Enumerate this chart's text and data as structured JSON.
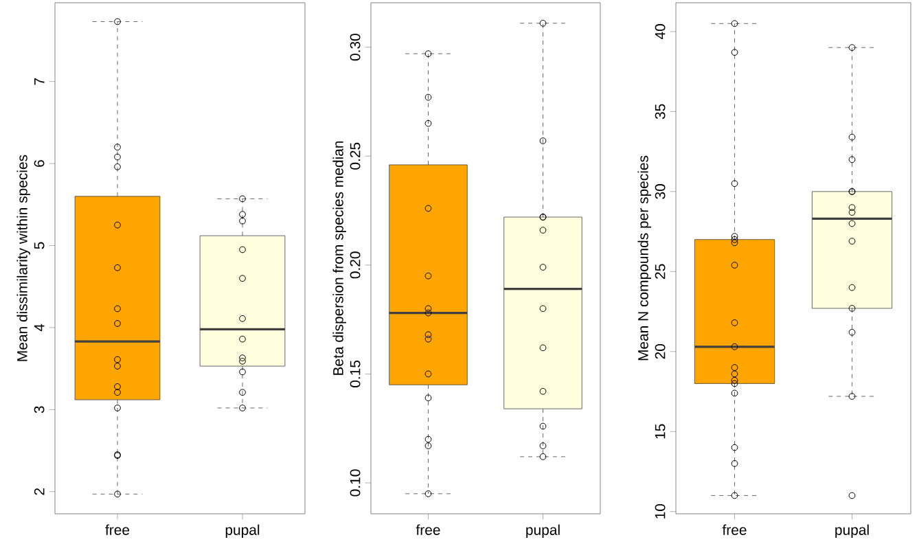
{
  "chart_data": [
    {
      "type": "box",
      "ylabel": "Mean dissimilarity within species",
      "categories": [
        "free",
        "pupal"
      ],
      "ylim": [
        1.73,
        7.96
      ],
      "yticks": [
        2,
        3,
        4,
        5,
        6,
        7
      ],
      "marker": "circle",
      "series": [
        {
          "type": "box",
          "colors": [
            "#ffa500",
            "#ffffe0"
          ],
          "boxes": [
            {
              "low": 1.97,
              "q1": 3.12,
              "median": 3.83,
              "q3": 5.6,
              "high": 7.73
            },
            {
              "low": 3.02,
              "q1": 3.53,
              "median": 3.98,
              "q3": 5.12,
              "high": 5.57
            }
          ]
        },
        {
          "type": "scatter",
          "color": "#000000",
          "x": [
            "free",
            "free",
            "free",
            "free",
            "free",
            "free",
            "free",
            "free",
            "free",
            "free",
            "free",
            "free",
            "free",
            "free",
            "free",
            "free",
            "pupal",
            "pupal",
            "pupal",
            "pupal",
            "pupal",
            "pupal",
            "pupal",
            "pupal",
            "pupal",
            "pupal",
            "pupal",
            "pupal"
          ],
          "values": [
            7.73,
            6.2,
            6.08,
            5.96,
            5.25,
            4.73,
            4.23,
            4.05,
            3.61,
            3.53,
            3.28,
            3.21,
            3.02,
            2.45,
            2.44,
            1.97,
            5.57,
            5.38,
            5.3,
            4.95,
            4.6,
            4.11,
            3.86,
            3.63,
            3.59,
            3.46,
            3.21,
            3.02
          ]
        }
      ]
    },
    {
      "type": "box",
      "ylabel": "Beta dispersion from species median",
      "categories": [
        "free",
        "pupal"
      ],
      "ylim": [
        0.0858,
        0.3204
      ],
      "yticks": [
        {
          "value": 0.1,
          "label": "0.10"
        },
        {
          "value": 0.15,
          "label": "0.15"
        },
        {
          "value": 0.2,
          "label": "0.20"
        },
        {
          "value": 0.25,
          "label": "0.25"
        },
        {
          "value": 0.3,
          "label": "0.30"
        }
      ],
      "marker": "circle",
      "series": [
        {
          "type": "box",
          "colors": [
            "#ffa500",
            "#ffffe0"
          ],
          "boxes": [
            {
              "low": 0.095,
              "q1": 0.145,
              "median": 0.178,
              "q3": 0.246,
              "high": 0.297
            },
            {
              "low": 0.112,
              "q1": 0.134,
              "median": 0.189,
              "q3": 0.222,
              "high": 0.311
            }
          ]
        },
        {
          "type": "scatter",
          "color": "#000000",
          "x": [
            "free",
            "free",
            "free",
            "free",
            "free",
            "free",
            "free",
            "free",
            "free",
            "free",
            "free",
            "free",
            "free",
            "free",
            "pupal",
            "pupal",
            "pupal",
            "pupal",
            "pupal",
            "pupal",
            "pupal",
            "pupal",
            "pupal",
            "pupal",
            "pupal",
            "pupal"
          ],
          "values": [
            0.297,
            0.277,
            0.265,
            0.226,
            0.195,
            0.18,
            0.178,
            0.168,
            0.166,
            0.15,
            0.139,
            0.12,
            0.117,
            0.095,
            0.311,
            0.257,
            0.222,
            0.222,
            0.216,
            0.199,
            0.18,
            0.162,
            0.142,
            0.126,
            0.117,
            0.112
          ]
        }
      ]
    },
    {
      "type": "box",
      "ylabel": "Mean N compounds per species",
      "categories": [
        "free",
        "pupal"
      ],
      "ylim": [
        9.86,
        41.8
      ],
      "yticks": [
        10,
        15,
        20,
        25,
        30,
        35,
        40
      ],
      "marker": "circle",
      "series": [
        {
          "type": "box",
          "colors": [
            "#ffa500",
            "#ffffe0"
          ],
          "boxes": [
            {
              "low": 11.0,
              "q1": 18.0,
              "median": 20.3,
              "q3": 27.0,
              "high": 40.5
            },
            {
              "low": 17.2,
              "q1": 22.7,
              "median": 28.3,
              "q3": 30.0,
              "high": 39.0
            }
          ]
        },
        {
          "type": "scatter",
          "color": "#000000",
          "x": [
            "free",
            "free",
            "free",
            "free",
            "free",
            "free",
            "free",
            "free",
            "free",
            "free",
            "free",
            "free",
            "free",
            "free",
            "free",
            "free",
            "free",
            "pupal",
            "pupal",
            "pupal",
            "pupal",
            "pupal",
            "pupal",
            "pupal",
            "pupal",
            "pupal",
            "pupal",
            "pupal",
            "pupal",
            "pupal",
            "pupal"
          ],
          "values": [
            40.5,
            38.7,
            30.5,
            27.2,
            27.0,
            26.8,
            25.4,
            21.8,
            20.3,
            19.0,
            18.6,
            18.2,
            18.0,
            17.4,
            14.0,
            13.0,
            11.0,
            39.0,
            33.4,
            32.0,
            30.0,
            30.0,
            29.0,
            28.7,
            28.0,
            26.9,
            24.0,
            22.7,
            21.2,
            17.2,
            11.0
          ]
        }
      ]
    }
  ]
}
